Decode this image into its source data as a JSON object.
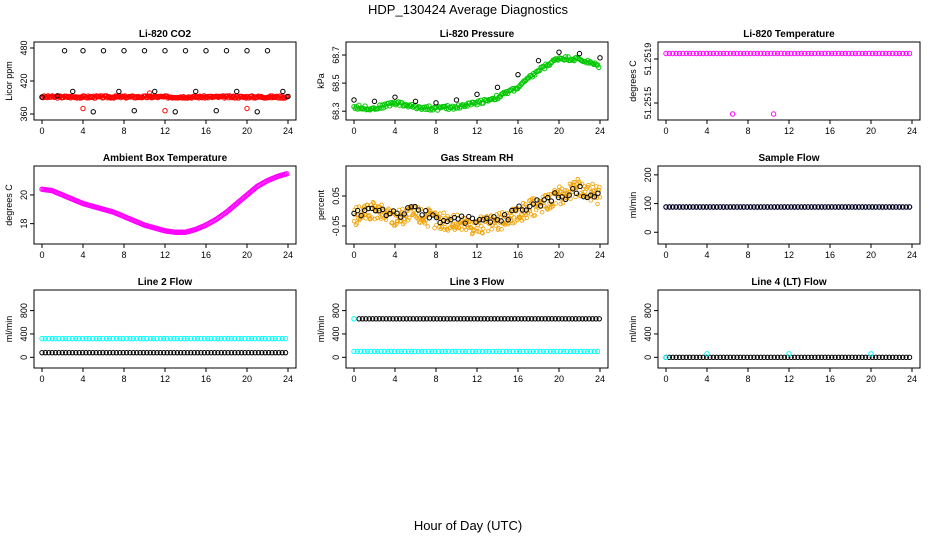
{
  "page": {
    "title": "HDP_130424  Average Diagnostics",
    "x_axis_title": "Hour of Day (UTC)"
  },
  "chart_data": [
    {
      "type": "scatter",
      "title": "Li-820 CO2",
      "ylabel": "Licor ppm",
      "xlim": [
        0,
        24
      ],
      "ylim": [
        360,
        480
      ],
      "xticks": [
        "0",
        "4",
        "8",
        "12",
        "16",
        "20",
        "24"
      ],
      "yticks": [
        "360",
        "420",
        "480"
      ],
      "series": [
        {
          "kind": "line",
          "color": "#ff0000",
          "x": [
            0,
            24
          ],
          "y": [
            391,
            391
          ]
        },
        {
          "kind": "points",
          "color": "#000000",
          "x": [
            0,
            1.5,
            2.2,
            3,
            4,
            5,
            6,
            7.5,
            8,
            9,
            10,
            11,
            12,
            13,
            14,
            15,
            16,
            17,
            18,
            19,
            20,
            21,
            22,
            23.5,
            24
          ],
          "y": [
            391,
            393,
            475,
            401,
            475,
            364,
            475,
            401,
            475,
            366,
            475,
            401,
            475,
            364,
            475,
            401,
            475,
            366,
            475,
            401,
            475,
            364,
            475,
            401,
            392
          ]
        },
        {
          "kind": "points",
          "color": "#ff0000",
          "x": [
            4,
            10.5,
            12,
            20
          ],
          "y": [
            370,
            398,
            366,
            370
          ]
        }
      ]
    },
    {
      "type": "scatter",
      "title": "Li-820 Pressure",
      "ylabel": "kPa",
      "xlim": [
        0,
        24
      ],
      "ylim": [
        68.28,
        68.75
      ],
      "xticks": [
        "0",
        "4",
        "8",
        "12",
        "16",
        "20",
        "24"
      ],
      "yticks": [
        "68.3",
        "68.5",
        "68.7"
      ],
      "series": [
        {
          "kind": "band",
          "color": "#00c800",
          "x": [
            0,
            2,
            4,
            6,
            8,
            10,
            12,
            14,
            16,
            18,
            20,
            22,
            24
          ],
          "y": [
            68.33,
            68.32,
            68.36,
            68.33,
            68.32,
            68.33,
            68.36,
            68.4,
            68.47,
            68.59,
            68.68,
            68.67,
            68.62
          ]
        },
        {
          "kind": "points",
          "color": "#000000",
          "x": [
            0,
            2,
            4,
            6,
            8,
            10,
            12,
            14,
            16,
            18,
            20,
            22,
            24
          ],
          "y": [
            68.38,
            68.37,
            68.4,
            68.37,
            68.36,
            68.38,
            68.42,
            68.47,
            68.56,
            68.66,
            68.72,
            68.71,
            68.68
          ]
        }
      ]
    },
    {
      "type": "scatter",
      "title": "Li-820 Temperature",
      "ylabel": "degrees C",
      "xlim": [
        0,
        24
      ],
      "ylim": [
        51.2514,
        51.252
      ],
      "xticks": [
        "0",
        "4",
        "8",
        "12",
        "16",
        "20",
        "24"
      ],
      "yticks": [
        "51.2515",
        "51.2519"
      ],
      "series": [
        {
          "kind": "row",
          "color": "#ff00ff",
          "x0": 0,
          "x1": 24,
          "y": 51.25195
        },
        {
          "kind": "points",
          "color": "#ff00ff",
          "x": [
            6.5,
            10.5
          ],
          "y": [
            51.2514,
            51.2514
          ]
        }
      ]
    },
    {
      "type": "scatter",
      "title": "Ambient Box Temperature",
      "ylabel": "degrees C",
      "xlim": [
        0,
        24
      ],
      "ylim": [
        17,
        21.6
      ],
      "xticks": [
        "0",
        "4",
        "8",
        "12",
        "16",
        "20",
        "24"
      ],
      "yticks": [
        "18",
        "20"
      ],
      "series": [
        {
          "kind": "curve",
          "color": "#ff00ff",
          "x": [
            0,
            1,
            2,
            3,
            4,
            5,
            6,
            7,
            8,
            9,
            10,
            11,
            12,
            13,
            14,
            15,
            16,
            17,
            18,
            19,
            20,
            21,
            22,
            23,
            24
          ],
          "y": [
            20.4,
            20.3,
            20.0,
            19.7,
            19.4,
            19.2,
            19.0,
            18.8,
            18.5,
            18.2,
            17.9,
            17.7,
            17.5,
            17.4,
            17.4,
            17.6,
            17.9,
            18.3,
            18.8,
            19.4,
            20.0,
            20.6,
            21.0,
            21.3,
            21.5
          ]
        }
      ]
    },
    {
      "type": "scatter",
      "title": "Gas Stream RH",
      "ylabel": "percent",
      "xlim": [
        0,
        24
      ],
      "ylim": [
        -0.09,
        0.13
      ],
      "xticks": [
        "0",
        "4",
        "8",
        "12",
        "16",
        "20",
        "24"
      ],
      "yticks": [
        "-0.05",
        "0.05"
      ],
      "series": [
        {
          "kind": "noisy",
          "color": "#f0a000",
          "x": [
            0,
            2,
            4,
            6,
            8,
            10,
            12,
            14,
            16,
            18,
            20,
            22,
            24
          ],
          "y": [
            -0.02,
            0.0,
            -0.02,
            -0.01,
            -0.03,
            -0.04,
            -0.05,
            -0.04,
            -0.01,
            0.02,
            0.05,
            0.08,
            0.05
          ]
        },
        {
          "kind": "noisy_pts",
          "color": "#000000",
          "x": [
            0,
            2,
            4,
            6,
            8,
            10,
            12,
            14,
            16,
            18,
            20,
            22,
            24
          ],
          "y": [
            -0.01,
            0.01,
            -0.01,
            0.0,
            -0.02,
            -0.03,
            -0.04,
            -0.03,
            0.0,
            0.03,
            0.05,
            0.07,
            0.04
          ]
        }
      ]
    },
    {
      "type": "scatter",
      "title": "Sample Flow",
      "ylabel": "ml/min",
      "xlim": [
        0,
        24
      ],
      "ylim": [
        -20,
        210
      ],
      "xticks": [
        "0",
        "4",
        "8",
        "12",
        "16",
        "20",
        "24"
      ],
      "yticks": [
        "0",
        "100",
        "200"
      ],
      "series": [
        {
          "kind": "row",
          "color": "#0000ff",
          "x0": 0,
          "x1": 24,
          "y": 88
        },
        {
          "kind": "row",
          "color": "#000000",
          "x0": 0,
          "x1": 24,
          "y": 88
        }
      ]
    },
    {
      "type": "scatter",
      "title": "Line 2 Flow",
      "ylabel": "ml/min",
      "xlim": [
        0,
        24
      ],
      "ylim": [
        -80,
        1050
      ],
      "xticks": [
        "0",
        "4",
        "8",
        "12",
        "16",
        "20",
        "24"
      ],
      "yticks": [
        "0",
        "400",
        "800"
      ],
      "series": [
        {
          "kind": "row",
          "color": "#00ffff",
          "x0": 0,
          "x1": 24,
          "y": 320
        },
        {
          "kind": "row",
          "color": "#000000",
          "x0": 0,
          "x1": 24,
          "y": 80
        }
      ]
    },
    {
      "type": "scatter",
      "title": "Line 3 Flow",
      "ylabel": "ml/min",
      "xlim": [
        0,
        24
      ],
      "ylim": [
        -80,
        1050
      ],
      "xticks": [
        "0",
        "4",
        "8",
        "12",
        "16",
        "20",
        "24"
      ],
      "yticks": [
        "0",
        "400",
        "800"
      ],
      "series": [
        {
          "kind": "row",
          "color": "#000000",
          "x0": 0.5,
          "x1": 24,
          "y": 660
        },
        {
          "kind": "row",
          "color": "#00ffff",
          "x0": 0,
          "x1": 24,
          "y": 100
        },
        {
          "kind": "points",
          "color": "#00ffff",
          "x": [
            0
          ],
          "y": [
            660
          ]
        }
      ]
    },
    {
      "type": "scatter",
      "title": "Line 4 (LT) Flow",
      "ylabel": "ml/min",
      "xlim": [
        0,
        24
      ],
      "ylim": [
        -80,
        1050
      ],
      "xticks": [
        "0",
        "4",
        "8",
        "12",
        "16",
        "20",
        "24"
      ],
      "yticks": [
        "0",
        "400",
        "800"
      ],
      "series": [
        {
          "kind": "row",
          "color": "#000000",
          "x0": 0,
          "x1": 24,
          "y": 0
        },
        {
          "kind": "points",
          "color": "#00ffff",
          "x": [
            0,
            4,
            12,
            20
          ],
          "y": [
            0,
            60,
            60,
            60
          ]
        }
      ]
    }
  ]
}
